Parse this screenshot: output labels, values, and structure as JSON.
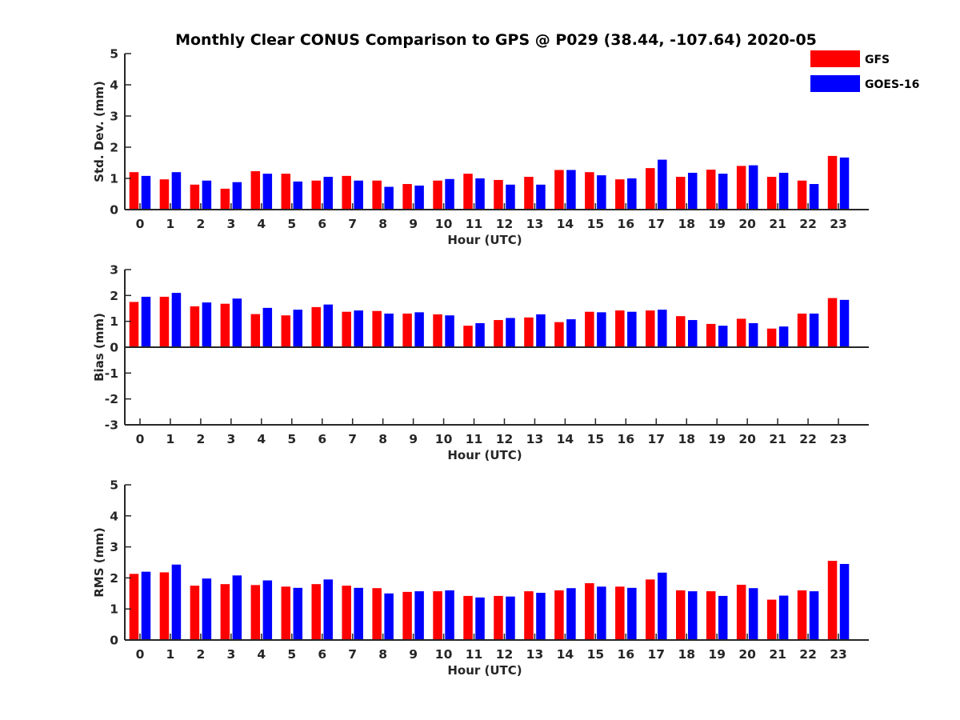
{
  "title": "Monthly Clear CONUS Comparison to GPS @ P029 (38.44, -107.64) 2020-05",
  "colors": {
    "GFS": "#ff0000",
    "GOES-16": "#0000ff",
    "axis": "#262626"
  },
  "legend": {
    "placement": "top-right",
    "items": [
      "GFS",
      "GOES-16"
    ]
  },
  "chart_data": [
    {
      "type": "bar",
      "xlabel": "Hour (UTC)",
      "ylabel": "Std. Dev. (mm)",
      "ylim": [
        0,
        5
      ],
      "yticks": [
        0,
        1,
        2,
        3,
        4,
        5
      ],
      "categories": [
        "0",
        "1",
        "2",
        "3",
        "4",
        "5",
        "6",
        "7",
        "8",
        "9",
        "10",
        "11",
        "12",
        "13",
        "14",
        "15",
        "16",
        "17",
        "18",
        "19",
        "20",
        "21",
        "22",
        "23"
      ],
      "series": [
        {
          "name": "GFS",
          "values": [
            1.2,
            0.97,
            0.8,
            0.67,
            1.23,
            1.15,
            0.93,
            1.08,
            0.93,
            0.82,
            0.93,
            1.15,
            0.95,
            1.05,
            1.27,
            1.2,
            0.97,
            1.33,
            1.05,
            1.28,
            1.4,
            1.05,
            0.93,
            1.72
          ]
        },
        {
          "name": "GOES-16",
          "values": [
            1.08,
            1.2,
            0.93,
            0.88,
            1.15,
            0.9,
            1.05,
            0.93,
            0.73,
            0.77,
            0.98,
            1.0,
            0.8,
            0.8,
            1.27,
            1.1,
            1.0,
            1.6,
            1.18,
            1.15,
            1.42,
            1.18,
            0.82,
            1.67
          ]
        }
      ]
    },
    {
      "type": "bar",
      "xlabel": "Hour (UTC)",
      "ylabel": "Bias (mm)",
      "ylim": [
        -3,
        3
      ],
      "yticks": [
        -3,
        -2,
        -1,
        0,
        1,
        2,
        3
      ],
      "categories": [
        "0",
        "1",
        "2",
        "3",
        "4",
        "5",
        "6",
        "7",
        "8",
        "9",
        "10",
        "11",
        "12",
        "13",
        "14",
        "15",
        "16",
        "17",
        "18",
        "19",
        "20",
        "21",
        "22",
        "23"
      ],
      "series": [
        {
          "name": "GFS",
          "values": [
            1.75,
            1.95,
            1.58,
            1.68,
            1.28,
            1.23,
            1.55,
            1.37,
            1.4,
            1.3,
            1.27,
            0.83,
            1.05,
            1.15,
            0.97,
            1.37,
            1.42,
            1.42,
            1.2,
            0.9,
            1.1,
            0.72,
            1.3,
            1.9
          ]
        },
        {
          "name": "GOES-16",
          "values": [
            1.95,
            2.1,
            1.73,
            1.88,
            1.52,
            1.45,
            1.65,
            1.42,
            1.3,
            1.35,
            1.23,
            0.93,
            1.13,
            1.27,
            1.08,
            1.35,
            1.37,
            1.45,
            1.05,
            0.83,
            0.93,
            0.8,
            1.3,
            1.83
          ]
        }
      ]
    },
    {
      "type": "bar",
      "xlabel": "Hour (UTC)",
      "ylabel": "RMS (mm)",
      "ylim": [
        0,
        5
      ],
      "yticks": [
        0,
        1,
        2,
        3,
        4,
        5
      ],
      "categories": [
        "0",
        "1",
        "2",
        "3",
        "4",
        "5",
        "6",
        "7",
        "8",
        "9",
        "10",
        "11",
        "12",
        "13",
        "14",
        "15",
        "16",
        "17",
        "18",
        "19",
        "20",
        "21",
        "22",
        "23"
      ],
      "series": [
        {
          "name": "GFS",
          "values": [
            2.13,
            2.18,
            1.75,
            1.8,
            1.77,
            1.72,
            1.8,
            1.75,
            1.67,
            1.55,
            1.57,
            1.42,
            1.42,
            1.57,
            1.6,
            1.83,
            1.72,
            1.95,
            1.6,
            1.57,
            1.78,
            1.3,
            1.6,
            2.55
          ]
        },
        {
          "name": "GOES-16",
          "values": [
            2.2,
            2.43,
            1.98,
            2.08,
            1.92,
            1.68,
            1.95,
            1.68,
            1.5,
            1.57,
            1.6,
            1.37,
            1.4,
            1.52,
            1.67,
            1.72,
            1.68,
            2.17,
            1.57,
            1.42,
            1.67,
            1.43,
            1.57,
            2.45
          ]
        }
      ]
    }
  ]
}
